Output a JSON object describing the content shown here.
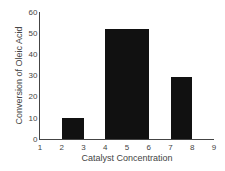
{
  "chart_data": {
    "type": "bar",
    "x": [
      2.5,
      5.0,
      7.5
    ],
    "values": [
      10.0,
      52.0,
      29.5
    ],
    "widths": [
      1.0,
      2.0,
      1.0
    ],
    "color": "#111111",
    "xlabel": "Catalyst Concentration",
    "ylabel": "Conversion of Oleic Acid",
    "xlim": [
      1,
      9
    ],
    "ylim": [
      0,
      60
    ],
    "xticks": [
      1,
      2,
      3,
      4,
      5,
      6,
      7,
      8,
      9
    ],
    "yticks": [
      0,
      10,
      20,
      30,
      40,
      50,
      60
    ],
    "grid": false
  }
}
